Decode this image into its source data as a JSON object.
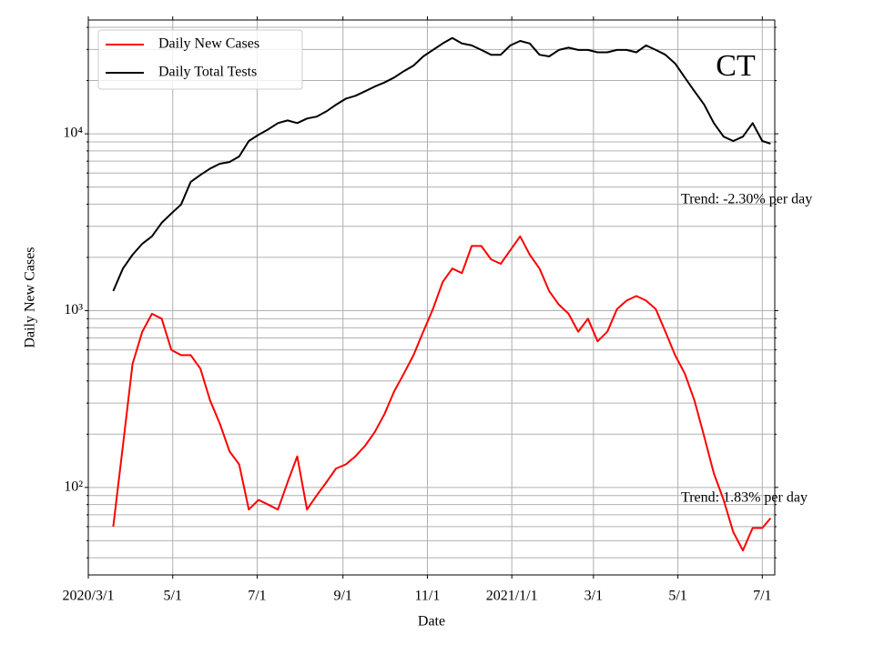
{
  "chart_data": {
    "type": "line",
    "annotations": [
      "CT",
      "Trend: -2.30% per day",
      "Trend: 1.83% per day"
    ],
    "xlabel": "Date",
    "ylabel": "Daily New Cases",
    "yscale": "log",
    "grid": true,
    "legend": "upper left",
    "x": [
      "2020-03-19",
      "2020-03-26",
      "2020-04-02",
      "2020-04-09",
      "2020-04-16",
      "2020-04-23",
      "2020-04-30",
      "2020-05-07",
      "2020-05-14",
      "2020-05-21",
      "2020-05-28",
      "2020-06-04",
      "2020-06-11",
      "2020-06-18",
      "2020-06-25",
      "2020-07-02",
      "2020-07-09",
      "2020-07-16",
      "2020-07-23",
      "2020-07-30",
      "2020-08-06",
      "2020-08-13",
      "2020-08-20",
      "2020-08-27",
      "2020-09-03",
      "2020-09-10",
      "2020-09-17",
      "2020-09-24",
      "2020-10-01",
      "2020-10-08",
      "2020-10-15",
      "2020-10-22",
      "2020-10-29",
      "2020-11-05",
      "2020-11-12",
      "2020-11-19",
      "2020-11-26",
      "2020-12-03",
      "2020-12-10",
      "2020-12-17",
      "2020-12-24",
      "2020-12-31",
      "2021-01-07",
      "2021-01-14",
      "2021-01-21",
      "2021-01-28",
      "2021-02-04",
      "2021-02-11",
      "2021-02-18",
      "2021-02-25",
      "2021-03-04",
      "2021-03-11",
      "2021-03-18",
      "2021-03-25",
      "2021-04-01",
      "2021-04-08",
      "2021-04-15",
      "2021-04-22",
      "2021-04-29",
      "2021-05-06",
      "2021-05-13",
      "2021-05-20",
      "2021-05-27",
      "2021-06-03",
      "2021-06-10",
      "2021-06-17",
      "2021-06-24",
      "2021-07-01",
      "2021-07-07"
    ],
    "series": [
      {
        "name": "Daily New Cases",
        "color": "#ff0000",
        "values": [
          60,
          172,
          500,
          760,
          960,
          900,
          600,
          560,
          560,
          470,
          310,
          230,
          160,
          135,
          75,
          85,
          80,
          75,
          107,
          150,
          75,
          90,
          107,
          128,
          135,
          150,
          172,
          206,
          260,
          350,
          440,
          560,
          760,
          1020,
          1450,
          1730,
          1630,
          2320,
          2320,
          1950,
          1840,
          2200,
          2630,
          2070,
          1730,
          1290,
          1080,
          960,
          760,
          900,
          670,
          760,
          1020,
          1140,
          1210,
          1140,
          1020,
          760,
          560,
          440,
          310,
          194,
          120,
          85,
          56,
          44,
          59,
          59,
          67
        ]
      },
      {
        "name": "Daily Total Tests",
        "color": "#000000",
        "values": [
          1290,
          1730,
          2070,
          2390,
          2630,
          3140,
          3540,
          3980,
          5350,
          5850,
          6360,
          6770,
          6920,
          7440,
          9100,
          9880,
          10600,
          11500,
          11900,
          11500,
          12200,
          12500,
          13400,
          14600,
          15800,
          16400,
          17400,
          18500,
          19500,
          20800,
          22600,
          24300,
          27400,
          29800,
          32400,
          34800,
          32400,
          31600,
          29800,
          28000,
          28000,
          31600,
          33500,
          32400,
          28000,
          27400,
          29800,
          30700,
          29800,
          29800,
          28900,
          28900,
          29800,
          29800,
          28900,
          31600,
          29800,
          28000,
          25000,
          20800,
          17400,
          14600,
          11500,
          9640,
          9100,
          9640,
          11500,
          9100,
          8800
        ]
      }
    ],
    "xlim": [
      "2020-03-01",
      "2021-07-10"
    ],
    "xticks": [
      {
        "value": "2020-03-01",
        "label": "2020/3/1"
      },
      {
        "value": "2020-05-01",
        "label": "5/1"
      },
      {
        "value": "2020-07-01",
        "label": "7/1"
      },
      {
        "value": "2020-09-01",
        "label": "9/1"
      },
      {
        "value": "2020-11-01",
        "label": "11/1"
      },
      {
        "value": "2021-01-01",
        "label": "2021/1/1"
      },
      {
        "value": "2021-03-01",
        "label": "3/1"
      },
      {
        "value": "2021-05-01",
        "label": "5/1"
      },
      {
        "value": "2021-07-01",
        "label": "7/1"
      }
    ],
    "ylim": [
      32,
      44000
    ],
    "yticks": [
      {
        "value": 100,
        "label": "10²"
      },
      {
        "value": 1000,
        "label": "10³"
      },
      {
        "value": 10000,
        "label": "10⁴"
      }
    ],
    "yticks_minor": [
      40,
      50,
      60,
      70,
      80,
      90,
      200,
      300,
      400,
      500,
      600,
      700,
      800,
      900,
      2000,
      3000,
      4000,
      5000,
      6000,
      7000,
      8000,
      9000,
      20000,
      30000,
      40000
    ]
  }
}
